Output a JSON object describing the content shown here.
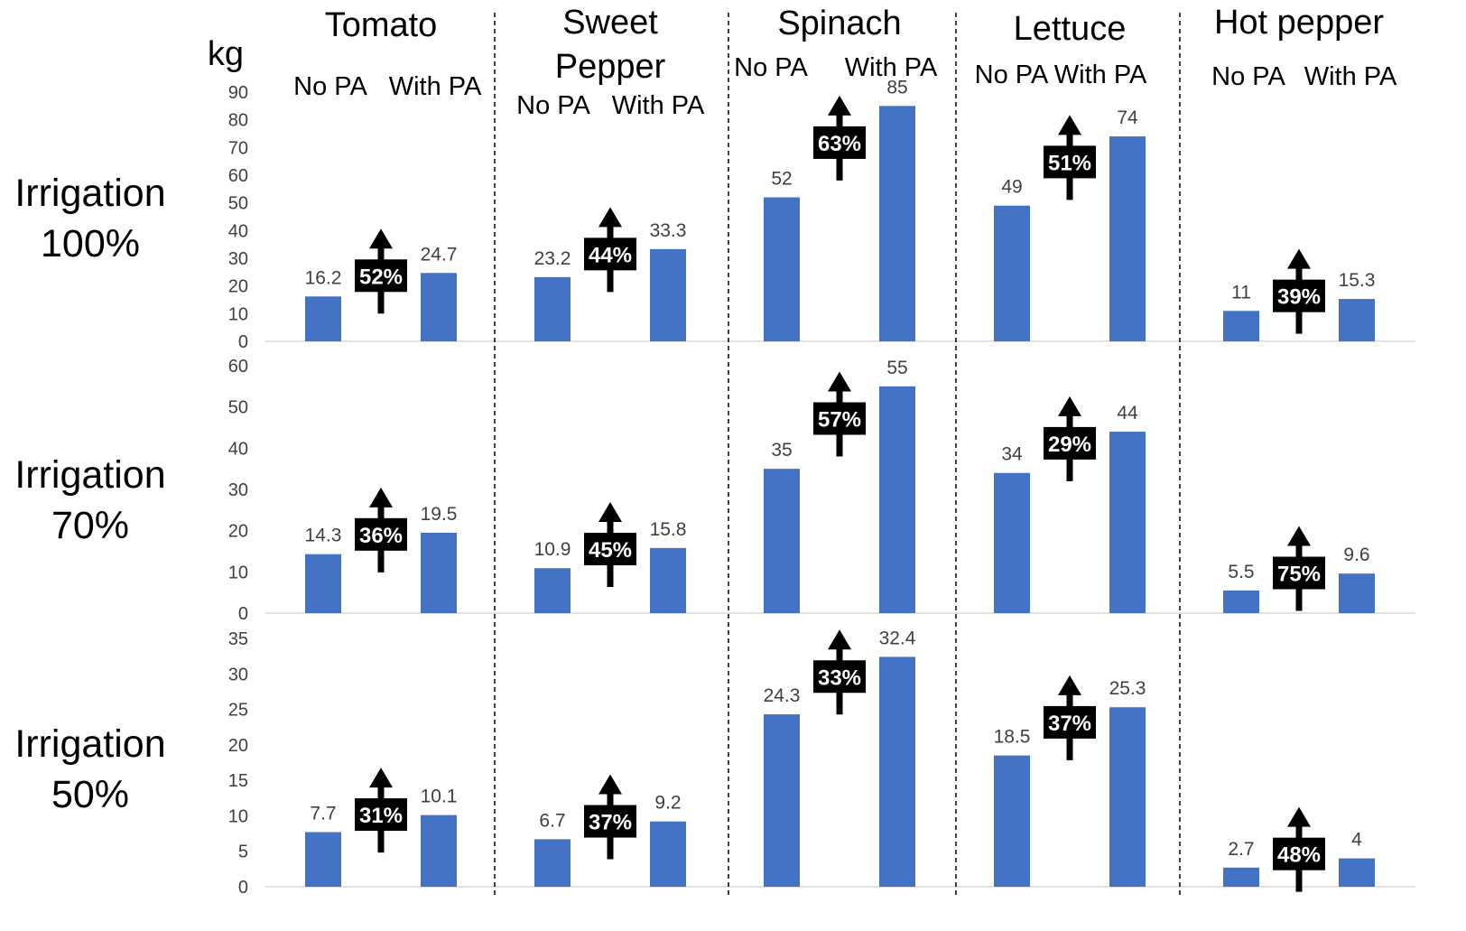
{
  "unit_label": "kg",
  "crops": [
    {
      "name": "Tomato",
      "left": "No PA",
      "right": "With PA"
    },
    {
      "name": "Sweet\nPepper",
      "left": "No PA",
      "right": "With PA"
    },
    {
      "name": "Spinach",
      "left": "No PA",
      "right": "With PA"
    },
    {
      "name": "Lettuce",
      "left": "No PA",
      "right": "With PA"
    },
    {
      "name": "Hot pepper",
      "left": "No PA",
      "right": "With PA"
    }
  ],
  "rows": [
    {
      "label": "Irrigation\n100%"
    },
    {
      "label": "Irrigation\n70%"
    },
    {
      "label": "Irrigation\n50%"
    }
  ],
  "colors": {
    "bar": "#4472C4",
    "badge": "#000000",
    "badge_text": "#ffffff",
    "text": "#000000",
    "value_label": "#404040"
  },
  "chart_data": {
    "type": "bar",
    "series_categories": [
      "No PA",
      "With PA"
    ],
    "panels": [
      {
        "row": "Irrigation 100%",
        "ylim": [
          0,
          90
        ],
        "yticks": [
          0,
          10,
          20,
          30,
          40,
          50,
          60,
          70,
          80,
          90
        ],
        "groups": [
          {
            "crop": "Tomato",
            "values": [
              16.2,
              24.7
            ],
            "labels": [
              "16.2",
              "24.7"
            ],
            "increase": "52%"
          },
          {
            "crop": "Sweet Pepper",
            "values": [
              23.2,
              33.3
            ],
            "labels": [
              "23.2",
              "33.3"
            ],
            "increase": "44%"
          },
          {
            "crop": "Spinach",
            "values": [
              52,
              85
            ],
            "labels": [
              "52",
              "85"
            ],
            "increase": "63%"
          },
          {
            "crop": "Lettuce",
            "values": [
              49,
              74
            ],
            "labels": [
              "49",
              "74"
            ],
            "increase": "51%"
          },
          {
            "crop": "Hot pepper",
            "values": [
              11,
              15.3
            ],
            "labels": [
              "11",
              "15.3"
            ],
            "increase": "39%"
          }
        ]
      },
      {
        "row": "Irrigation 70%",
        "ylim": [
          0,
          60
        ],
        "yticks": [
          0,
          10,
          20,
          30,
          40,
          50,
          60
        ],
        "groups": [
          {
            "crop": "Tomato",
            "values": [
              14.3,
              19.5
            ],
            "labels": [
              "14.3",
              "19.5"
            ],
            "increase": "36%"
          },
          {
            "crop": "Sweet Pepper",
            "values": [
              10.9,
              15.8
            ],
            "labels": [
              "10.9",
              "15.8"
            ],
            "increase": "45%"
          },
          {
            "crop": "Spinach",
            "values": [
              35,
              55
            ],
            "labels": [
              "35",
              "55"
            ],
            "increase": "57%"
          },
          {
            "crop": "Lettuce",
            "values": [
              34,
              44
            ],
            "labels": [
              "34",
              "44"
            ],
            "increase": "29%"
          },
          {
            "crop": "Hot pepper",
            "values": [
              5.5,
              9.6
            ],
            "labels": [
              "5.5",
              "9.6"
            ],
            "increase": "75%"
          }
        ]
      },
      {
        "row": "Irrigation 50%",
        "ylim": [
          0,
          35
        ],
        "yticks": [
          0,
          5,
          10,
          15,
          20,
          25,
          30,
          35
        ],
        "groups": [
          {
            "crop": "Tomato",
            "values": [
              7.7,
              10.1
            ],
            "labels": [
              "7.7",
              "10.1"
            ],
            "increase": "31%"
          },
          {
            "crop": "Sweet Pepper",
            "values": [
              6.7,
              9.2
            ],
            "labels": [
              "6.7",
              "9.2"
            ],
            "increase": "37%"
          },
          {
            "crop": "Spinach",
            "values": [
              24.3,
              32.4
            ],
            "labels": [
              "24.3",
              "32.4"
            ],
            "increase": "33%"
          },
          {
            "crop": "Lettuce",
            "values": [
              18.5,
              25.3
            ],
            "labels": [
              "18.5",
              "25.3"
            ],
            "increase": "37%"
          },
          {
            "crop": "Hot pepper",
            "values": [
              2.7,
              4
            ],
            "labels": [
              "2.7",
              "4"
            ],
            "increase": "48%"
          }
        ]
      }
    ]
  }
}
